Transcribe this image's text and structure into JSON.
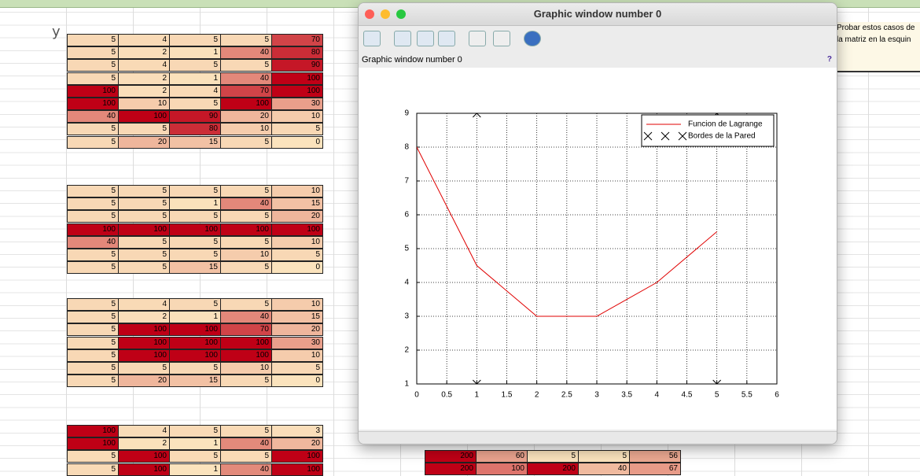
{
  "sheet": {
    "y_label": "y",
    "note": [
      "Probar estos casos de",
      "la matriz en la esquin"
    ],
    "tables": [
      {
        "rows": [
          [
            5,
            4,
            5,
            5,
            70
          ],
          [
            5,
            2,
            1,
            40,
            80
          ],
          [
            5,
            4,
            5,
            5,
            90
          ],
          [
            5,
            2,
            1,
            40,
            100
          ],
          [
            100,
            2,
            4,
            70,
            100
          ],
          [
            100,
            10,
            5,
            100,
            30
          ],
          [
            40,
            100,
            90,
            20,
            10
          ],
          [
            5,
            5,
            80,
            10,
            5
          ],
          [
            5,
            20,
            15,
            5,
            0
          ]
        ]
      },
      {
        "rows": [
          [
            5,
            5,
            5,
            5,
            10
          ],
          [
            5,
            5,
            1,
            40,
            15
          ],
          [
            5,
            5,
            5,
            5,
            20
          ],
          [
            100,
            100,
            100,
            100,
            100
          ],
          [
            40,
            5,
            5,
            5,
            10
          ],
          [
            5,
            5,
            5,
            10,
            5
          ],
          [
            5,
            5,
            15,
            5,
            0
          ]
        ]
      },
      {
        "rows": [
          [
            5,
            4,
            5,
            5,
            10
          ],
          [
            5,
            2,
            1,
            40,
            15
          ],
          [
            5,
            100,
            100,
            70,
            20
          ],
          [
            5,
            100,
            100,
            100,
            30
          ],
          [
            5,
            100,
            100,
            100,
            10
          ],
          [
            5,
            5,
            5,
            10,
            5
          ],
          [
            5,
            20,
            15,
            5,
            0
          ]
        ]
      },
      {
        "rows": [
          [
            100,
            4,
            5,
            5,
            3
          ],
          [
            100,
            2,
            1,
            40,
            20
          ],
          [
            5,
            100,
            5,
            5,
            100
          ],
          [
            5,
            100,
            1,
            40,
            100
          ]
        ]
      },
      {
        "rows": [
          [
            200,
            60,
            5,
            5,
            56
          ],
          [
            200,
            100,
            200,
            40,
            67
          ]
        ]
      }
    ]
  },
  "window": {
    "title": "Graphic window number 0",
    "label": "Graphic window number 0",
    "help": "?"
  },
  "chart_data": {
    "type": "line",
    "series": [
      {
        "name": "Funcion de Lagrange",
        "color": "#e00000",
        "style": "line",
        "x": [
          0,
          1,
          2,
          3,
          4,
          5
        ],
        "values": [
          8,
          4.5,
          3,
          3,
          4,
          5.5
        ]
      },
      {
        "name": "Bordes de la Pared",
        "color": "#000000",
        "style": "markers",
        "x": [
          1,
          1,
          5,
          5
        ],
        "values": [
          1,
          9,
          1,
          9
        ]
      }
    ],
    "xlim": [
      0,
      6
    ],
    "xticks": [
      0,
      0.5,
      1,
      1.5,
      2,
      2.5,
      3,
      3.5,
      4,
      4.5,
      5,
      5.5,
      6
    ],
    "ylim": [
      1,
      9
    ],
    "yticks": [
      1,
      2,
      3,
      4,
      5,
      6,
      7,
      8,
      9
    ],
    "grid": true,
    "legend": "upper right"
  }
}
